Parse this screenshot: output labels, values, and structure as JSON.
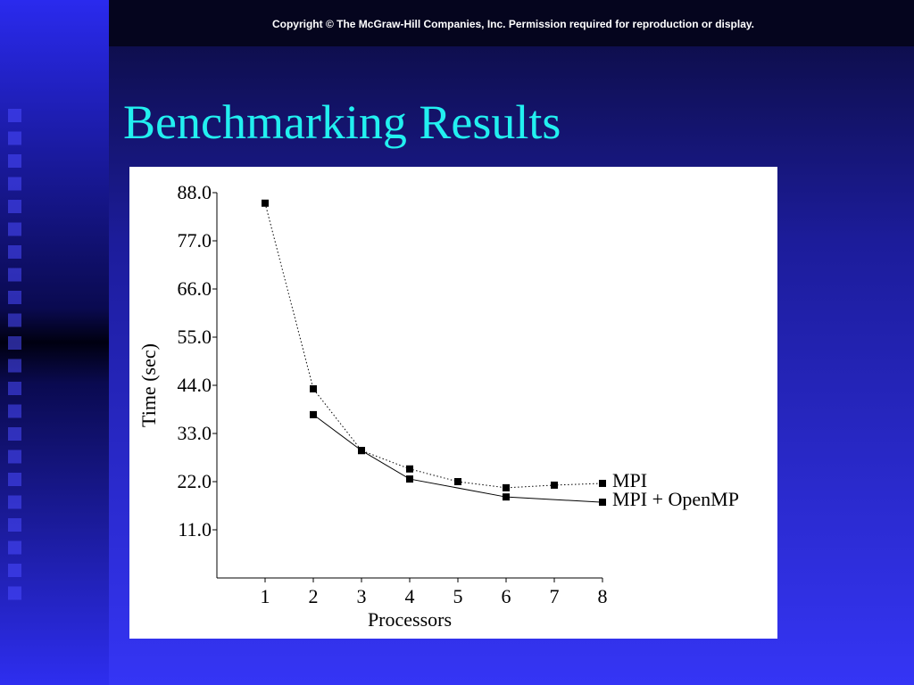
{
  "copyright": "Copyright © The McGraw-Hill Companies, Inc. Permission required for reproduction or display.",
  "slide_title": "Benchmarking Results",
  "chart_data": {
    "type": "line",
    "x_label": "Processors",
    "y_label": "Time (sec)",
    "xlim": [
      0,
      8
    ],
    "xticks": [
      1,
      2,
      3,
      4,
      5,
      6,
      7,
      8
    ],
    "ylim": [
      0,
      88
    ],
    "yticks": [
      {
        "value": 11,
        "label": "11.0"
      },
      {
        "value": 22,
        "label": "22.0"
      },
      {
        "value": 33,
        "label": "33.0"
      },
      {
        "value": 44,
        "label": "44.0"
      },
      {
        "value": 55,
        "label": "55.0"
      },
      {
        "value": 66,
        "label": "66.0"
      },
      {
        "value": 77,
        "label": "77.0"
      },
      {
        "value": 88,
        "label": "88.0"
      }
    ],
    "series": [
      {
        "name": "MPI",
        "color": "#000000",
        "line_style": "dotted",
        "x": [
          1,
          2,
          3,
          4,
          5,
          6,
          7,
          8
        ],
        "values": [
          85.6,
          43.2,
          29.1,
          24.9,
          22.0,
          20.6,
          21.2,
          21.6
        ]
      },
      {
        "name": "MPI + OpenMP",
        "color": "#000000",
        "line_style": "solid",
        "x": [
          2,
          3,
          4,
          6,
          8
        ],
        "values": [
          37.3,
          29.1,
          22.6,
          18.5,
          17.3
        ]
      }
    ]
  }
}
